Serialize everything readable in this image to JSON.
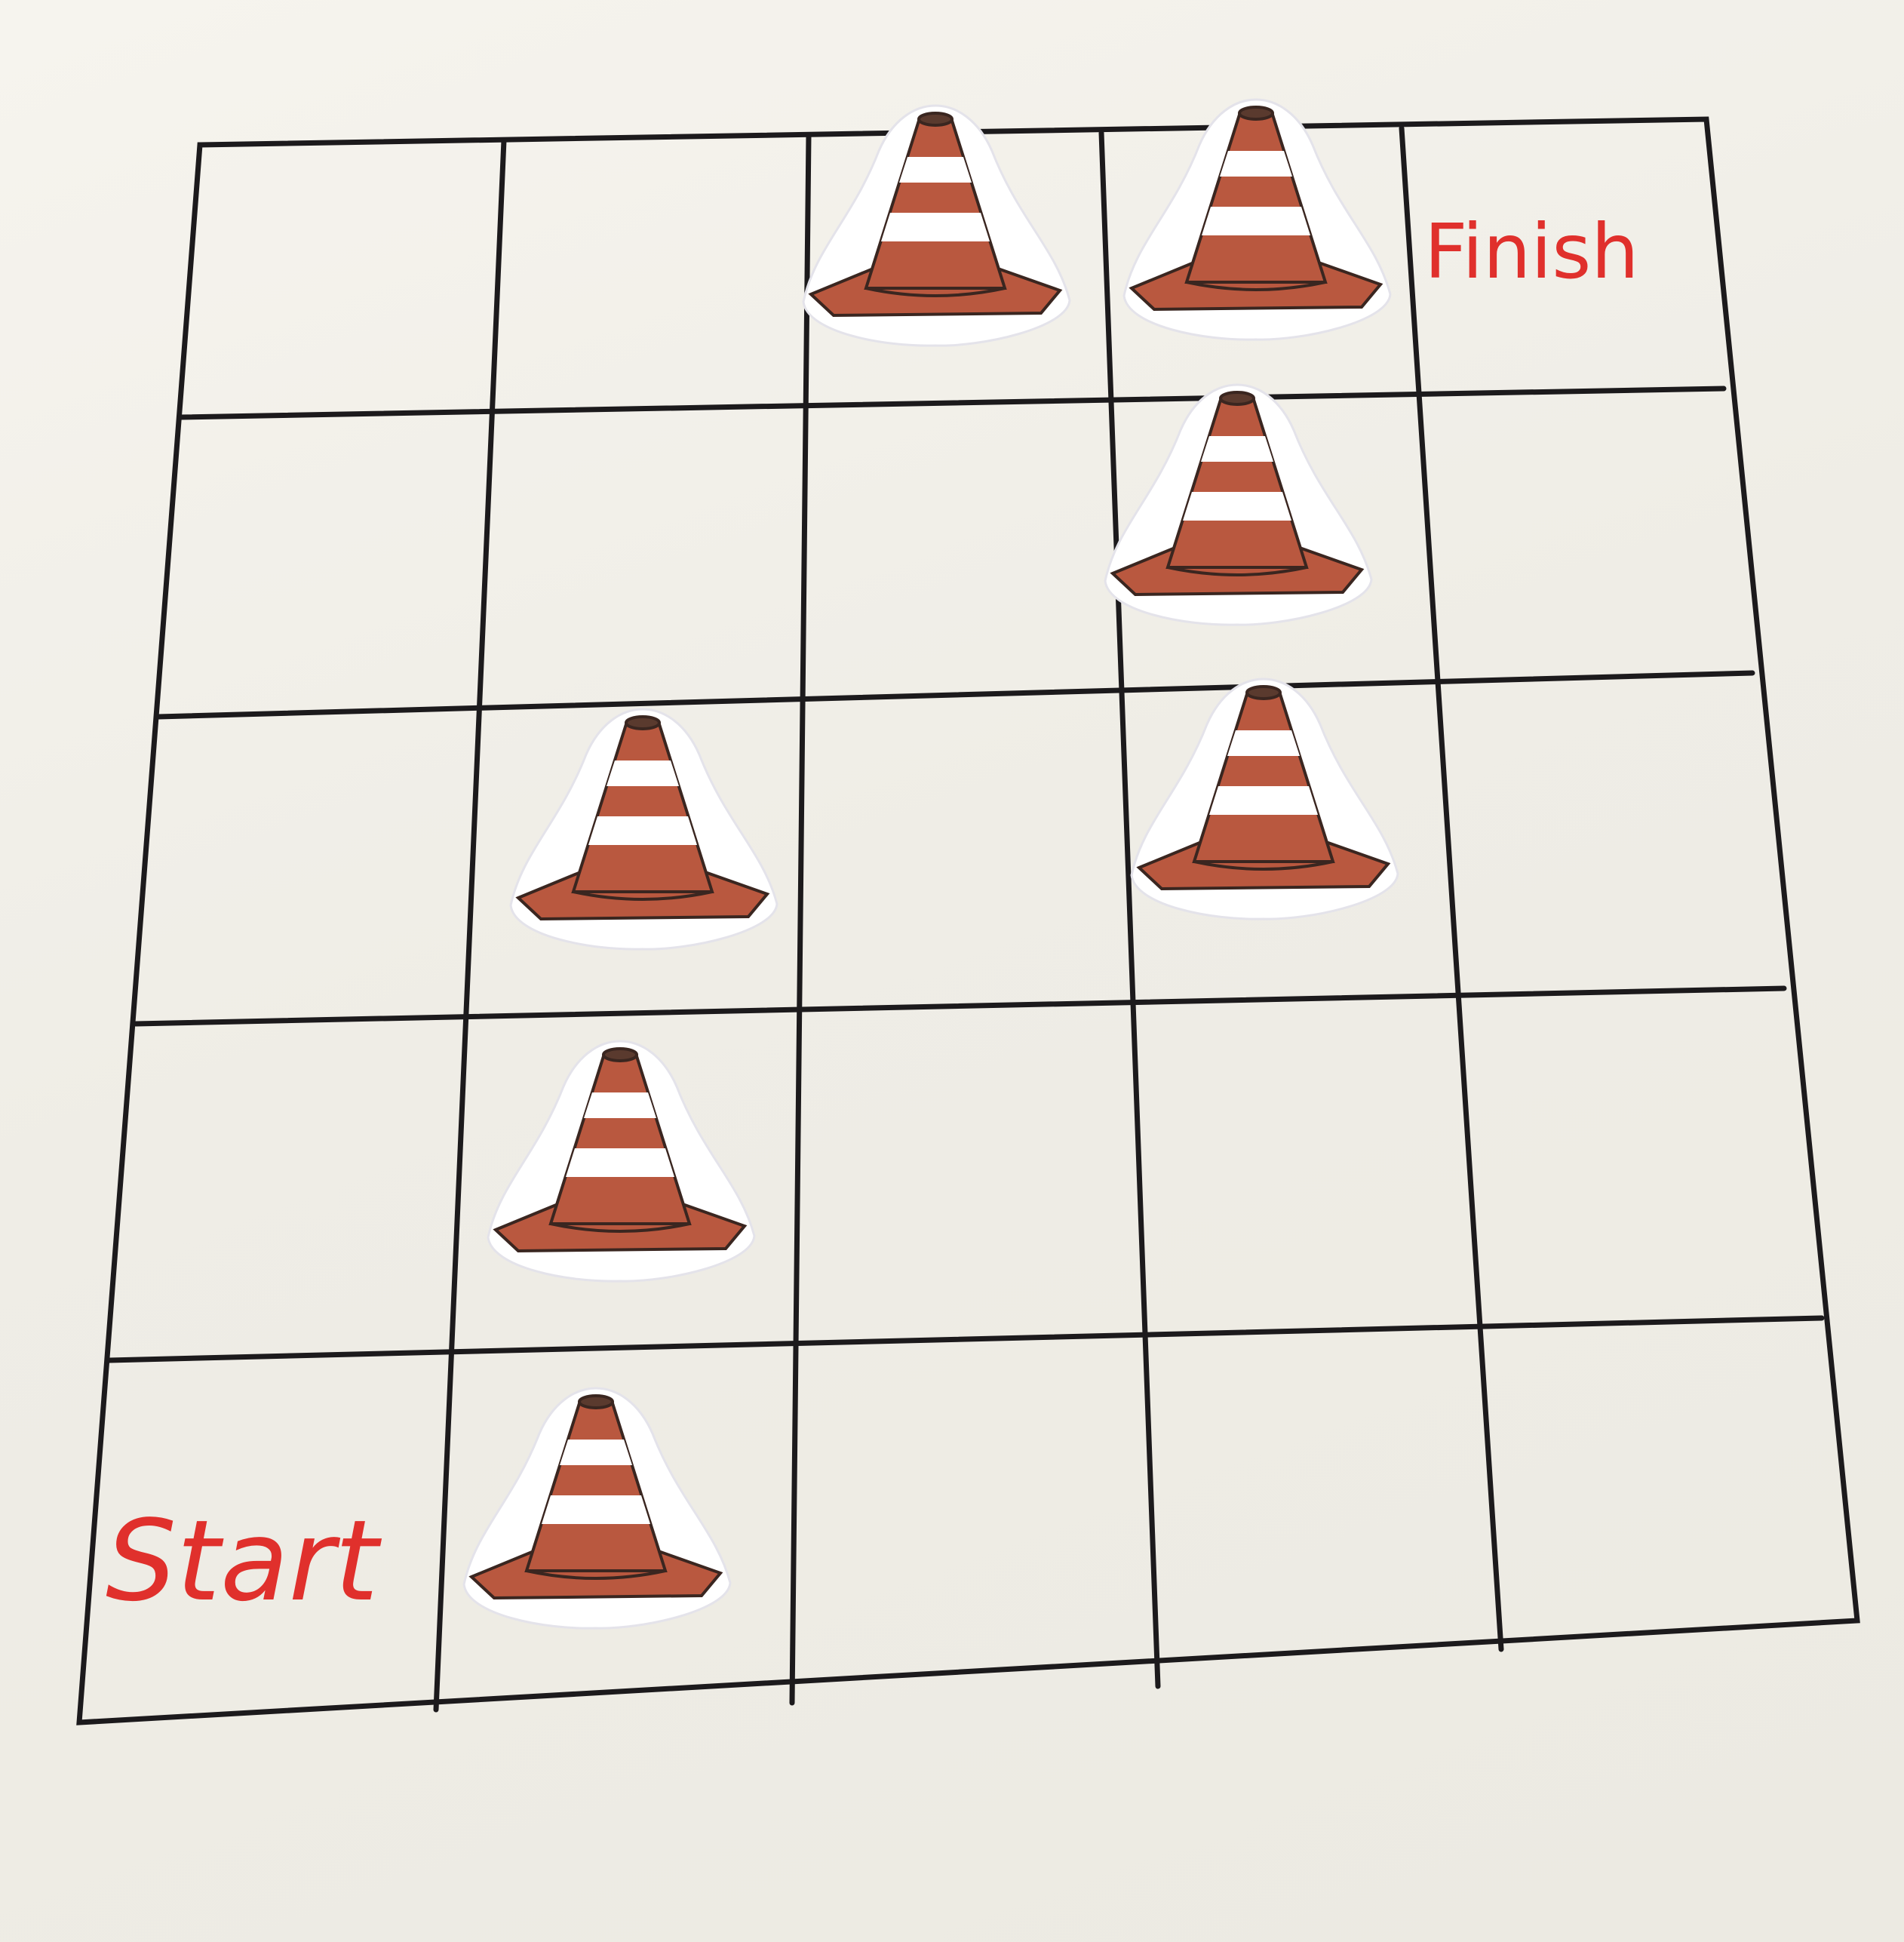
{
  "board": {
    "rows": 5,
    "columns": 5,
    "line_color": "#1c1a1c",
    "paper_color": "#f2f0ea"
  },
  "labels": {
    "start": "Start",
    "finish": "Finish",
    "color": "#e0302c"
  },
  "start_cell": {
    "row": 5,
    "column": 1
  },
  "finish_cell": {
    "row": 1,
    "column": 5
  },
  "cones": [
    {
      "row": 1,
      "column": 3
    },
    {
      "row": 1,
      "column": 4
    },
    {
      "row": 2,
      "column": 4
    },
    {
      "row": 3,
      "column": 2
    },
    {
      "row": 3,
      "column": 4
    },
    {
      "row": 4,
      "column": 2
    },
    {
      "row": 5,
      "column": 2
    }
  ],
  "cone_icon": "traffic-cone-icon",
  "cone_colors": {
    "body": "#b9583f",
    "stripe": "#ffffff",
    "outline": "#3a2620",
    "cutout": "#ffffff"
  }
}
